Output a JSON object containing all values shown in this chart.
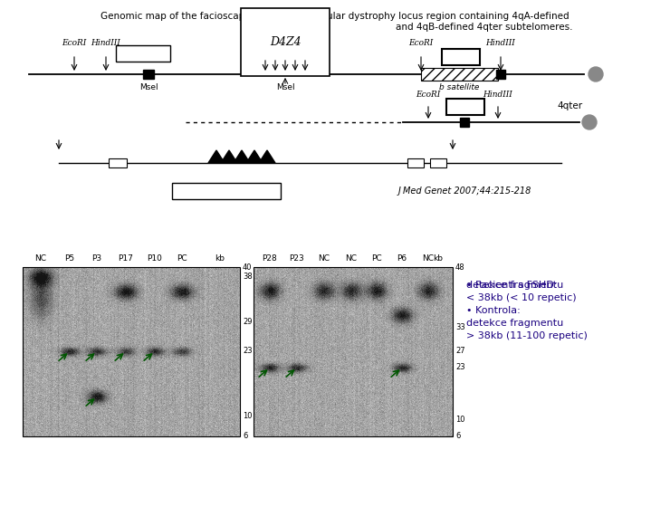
{
  "title_line1": "Genomic map of the facioscapulohumeral muscular dystrophy locus region containing 4qA-defined",
  "title_line2": "and 4qB-defined 4qter subtelomeres.",
  "journal_ref": "J Med Genet 2007;44:215-218",
  "annotation_lines": [
    "• Pacienti s FSHD:",
    "detekce fragmentu",
    "< 38kb (< 10 repetic)",
    "• Kontrola:",
    "detekce fragmentu",
    "> 38kb (11-100 repetic)"
  ],
  "background_color": "#ffffff",
  "text_color": "#000000",
  "annotation_color": "#1a0080",
  "lane_labels_left": [
    "NC",
    "P5",
    "P3",
    "P17",
    "P10",
    "PC",
    "kb"
  ],
  "lane_labels_right": [
    "P28",
    "P23",
    "NC",
    "NC",
    "PC",
    "P6",
    "NC",
    "kb"
  ],
  "kb_labels_left": [
    "40",
    "38",
    "29",
    "23",
    "10",
    "6"
  ],
  "kb_labels_right": [
    "48",
    "33",
    "27",
    "23",
    "10",
    "6"
  ]
}
